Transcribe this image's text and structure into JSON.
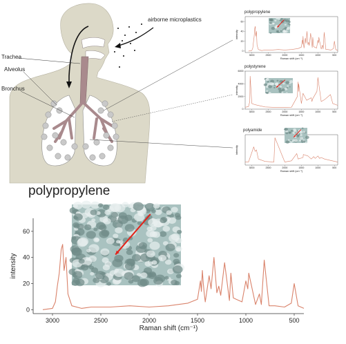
{
  "annotations": {
    "airborne": "airborne microplastics",
    "trachea": "Trachea",
    "alveolus": "Alveolus",
    "bronchus": "Bronchus"
  },
  "main_title": "polypropylene",
  "colors": {
    "body": "#dcd9c8",
    "lungs": "#ffffff",
    "trachea": "#a98a8d",
    "spectrum": "#d9826a",
    "micrograph": "#a9c2c0"
  },
  "chart_data": [
    {
      "type": "line",
      "title": "polypropylene",
      "xlabel": "Raman shift (cm⁻¹)",
      "ylabel": "intensity",
      "xlim": [
        3200,
        400
      ],
      "ylim": [
        -3,
        70
      ],
      "xticks": [
        "3000",
        "2500",
        "2000",
        "1500",
        "1000",
        "500"
      ],
      "yticks": [
        "0",
        "20",
        "40",
        "60"
      ],
      "x": [
        3100,
        3000,
        2970,
        2950,
        2930,
        2910,
        2895,
        2880,
        2860,
        2840,
        2800,
        2700,
        2600,
        2400,
        2200,
        2000,
        1800,
        1600,
        1500,
        1470,
        1460,
        1450,
        1440,
        1430,
        1420,
        1380,
        1360,
        1330,
        1300,
        1280,
        1260,
        1220,
        1170,
        1155,
        1130,
        1100,
        1040,
        1000,
        980,
        970,
        900,
        860,
        840,
        810,
        760,
        700,
        600,
        530,
        500,
        460,
        400
      ],
      "y": [
        0,
        1,
        6,
        18,
        28,
        46,
        50,
        30,
        40,
        12,
        3,
        1,
        2,
        2,
        3,
        2,
        3,
        5,
        8,
        22,
        14,
        30,
        20,
        12,
        6,
        26,
        16,
        40,
        13,
        18,
        11,
        36,
        7,
        28,
        9,
        8,
        6,
        22,
        16,
        28,
        4,
        12,
        4,
        38,
        3,
        3,
        2,
        5,
        20,
        3,
        1
      ]
    },
    {
      "type": "line",
      "title": "polypropylene",
      "xlabel": "Raman shift (cm⁻¹)",
      "ylabel": "intensity",
      "xlim": [
        3200,
        400
      ],
      "ylim": [
        -3,
        70
      ],
      "xticks": [
        "3000",
        "2500",
        "2000",
        "1500",
        "1000",
        "500"
      ],
      "yticks": [
        "0",
        "20",
        "40",
        "60"
      ],
      "x": [
        3100,
        3000,
        2970,
        2950,
        2930,
        2910,
        2895,
        2880,
        2860,
        2840,
        2800,
        2700,
        2600,
        2400,
        2200,
        2000,
        1800,
        1600,
        1500,
        1470,
        1460,
        1450,
        1440,
        1430,
        1420,
        1380,
        1360,
        1330,
        1300,
        1280,
        1260,
        1220,
        1170,
        1155,
        1130,
        1100,
        1040,
        1000,
        980,
        970,
        900,
        860,
        840,
        810,
        760,
        700,
        600,
        530,
        500,
        460,
        400
      ],
      "y": [
        0,
        1,
        6,
        18,
        28,
        46,
        50,
        30,
        40,
        12,
        3,
        1,
        2,
        2,
        3,
        2,
        3,
        5,
        8,
        22,
        14,
        30,
        20,
        12,
        6,
        26,
        16,
        40,
        13,
        18,
        11,
        36,
        7,
        28,
        9,
        8,
        6,
        22,
        16,
        28,
        4,
        12,
        4,
        38,
        3,
        3,
        2,
        5,
        20,
        3,
        1
      ]
    },
    {
      "type": "line",
      "title": "polystyrene",
      "xlabel": "Raman shift (cm⁻¹)",
      "ylabel": "intensity",
      "xlim": [
        3200,
        400
      ],
      "ylim": [
        0,
        6000
      ],
      "xticks": [
        "3000",
        "2500",
        "2000",
        "1500",
        "1000",
        "500"
      ],
      "yticks": [
        "0",
        "2000",
        "4000",
        "6000"
      ],
      "x": [
        3200,
        3100,
        3060,
        3050,
        3000,
        2900,
        2600,
        2200,
        1800,
        1620,
        1600,
        1590,
        1580,
        1500,
        1450,
        1340,
        1200,
        1180,
        1160,
        1030,
        1000,
        900,
        800,
        620,
        550,
        400
      ],
      "y": [
        300,
        400,
        1200,
        5200,
        900,
        700,
        350,
        250,
        300,
        2000,
        4300,
        2800,
        4000,
        900,
        2500,
        1400,
        1800,
        1200,
        1600,
        2800,
        5000,
        1200,
        1500,
        2300,
        900,
        600
      ]
    },
    {
      "type": "line",
      "title": "polyamide",
      "xlabel": "Raman shift (cm⁻¹)",
      "ylabel": "intensity",
      "xlim": [
        3200,
        400
      ],
      "ylim": [
        0,
        10
      ],
      "xticks": [
        "3000",
        "2500",
        "2000",
        "1500",
        "1000",
        "500"
      ],
      "yticks": [],
      "x": [
        3200,
        3100,
        2940,
        2900,
        2860,
        2800,
        2600,
        2330,
        2300,
        2000,
        1800,
        1640,
        1600,
        1450,
        1440,
        1300,
        1200,
        1130,
        1080,
        1000,
        950,
        900,
        800,
        600,
        400
      ],
      "y": [
        1,
        1,
        6,
        4.5,
        5,
        2,
        1.2,
        1,
        9,
        1,
        1.4,
        3.8,
        2,
        2.5,
        3.5,
        3,
        2,
        2.8,
        2.2,
        3,
        2.2,
        2.5,
        2,
        1.5,
        1
      ]
    }
  ]
}
